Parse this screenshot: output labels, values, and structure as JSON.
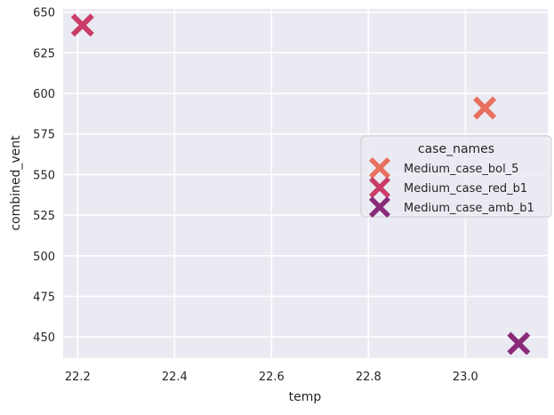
{
  "chart_data": {
    "type": "scatter",
    "xlabel": "temp",
    "ylabel": "combined_vent",
    "xlim": [
      22.17,
      23.17
    ],
    "ylim": [
      437,
      652
    ],
    "xticks": [
      22.2,
      22.4,
      22.6,
      22.8,
      23.0
    ],
    "yticks": [
      450,
      475,
      500,
      525,
      550,
      575,
      600,
      625,
      650
    ],
    "grid": true,
    "legend": {
      "title": "case_names",
      "placement": "center-right"
    },
    "series": [
      {
        "name": "Medium_case_bol_5",
        "color": "#e8705e",
        "marker": "x",
        "points": [
          {
            "x": 23.04,
            "y": 591
          }
        ]
      },
      {
        "name": "Medium_case_red_b1",
        "color": "#c93d68",
        "marker": "x",
        "points": [
          {
            "x": 22.21,
            "y": 642
          }
        ]
      },
      {
        "name": "Medium_case_amb_b1",
        "color": "#8a2b79",
        "marker": "x",
        "points": [
          {
            "x": 23.11,
            "y": 446
          }
        ]
      }
    ]
  }
}
